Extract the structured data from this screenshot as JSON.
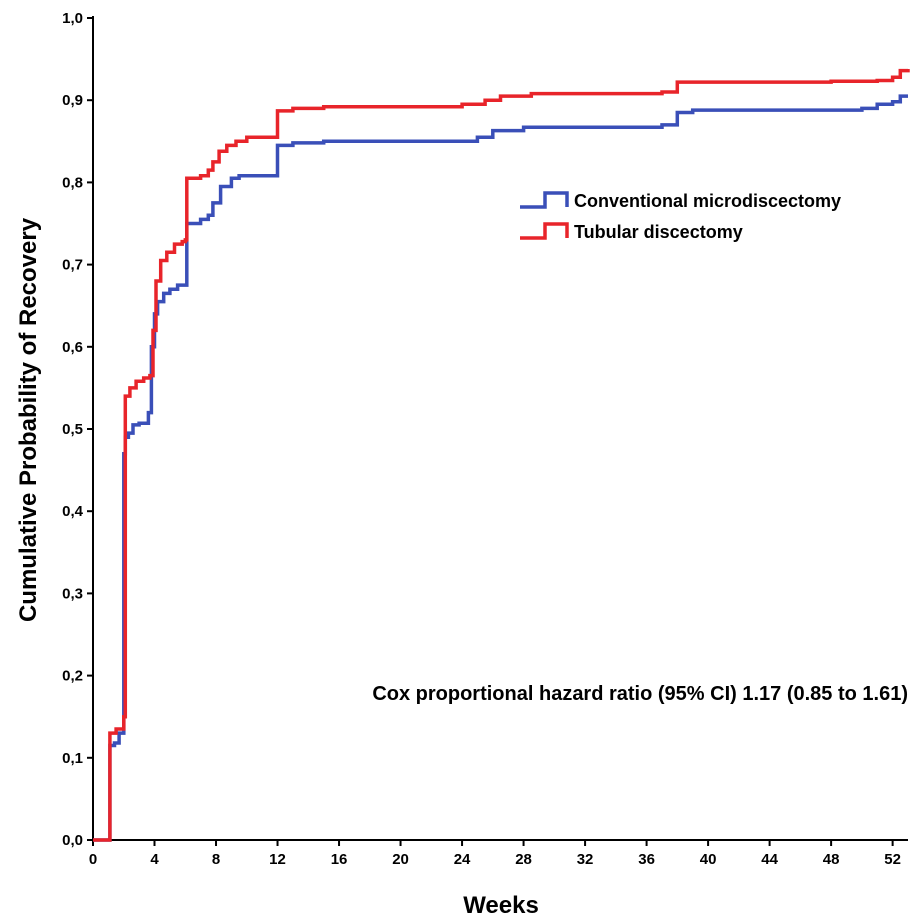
{
  "chart_data": {
    "type": "line",
    "step": true,
    "xlabel": "Weeks",
    "ylabel": "Cumulative Probability of Recovery",
    "xlim": [
      0,
      53
    ],
    "ylim": [
      0,
      1
    ],
    "x_ticks": [
      0,
      4,
      8,
      12,
      16,
      20,
      24,
      28,
      32,
      36,
      40,
      44,
      48,
      52
    ],
    "x_tick_labels": [
      "0",
      "4",
      "8",
      "12",
      "16",
      "20",
      "24",
      "28",
      "32",
      "36",
      "40",
      "44",
      "48",
      "52"
    ],
    "y_ticks": [
      0,
      0.1,
      0.2,
      0.3,
      0.4,
      0.5,
      0.6,
      0.7,
      0.8,
      0.9,
      1.0
    ],
    "y_tick_labels": [
      "0,0",
      "0,1",
      "0,2",
      "0,3",
      "0,4",
      "0,5",
      "0,6",
      "0,7",
      "0,8",
      "0,9",
      "1,0"
    ],
    "grid": false,
    "legend_position": "top-right",
    "annotation": "Cox proportional hazard ratio (95% CI) 1.17 (0.85 to 1.61)",
    "series": [
      {
        "name": "Conventional microdiscectomy",
        "color": "#3a4fb8",
        "x": [
          0,
          1,
          1.1,
          1.4,
          1.7,
          2.0,
          2.1,
          2.3,
          2.6,
          3.0,
          3.6,
          3.8,
          4.0,
          4.2,
          4.6,
          5.0,
          5.5,
          6.0,
          6.1,
          7.0,
          7.5,
          7.8,
          8.3,
          9.0,
          9.5,
          12.0,
          13.0,
          15.0,
          24.0,
          25.0,
          26.0,
          28.0,
          37.0,
          38.0,
          39.0,
          48.0,
          50.0,
          51.0,
          52.0,
          52.5,
          53.0
        ],
        "y": [
          0,
          0,
          0.115,
          0.118,
          0.13,
          0.47,
          0.49,
          0.495,
          0.505,
          0.507,
          0.52,
          0.6,
          0.64,
          0.655,
          0.665,
          0.67,
          0.675,
          0.675,
          0.75,
          0.755,
          0.76,
          0.775,
          0.795,
          0.805,
          0.808,
          0.845,
          0.848,
          0.85,
          0.85,
          0.855,
          0.863,
          0.867,
          0.87,
          0.885,
          0.888,
          0.888,
          0.89,
          0.895,
          0.898,
          0.905,
          0.905
        ]
      },
      {
        "name": "Tubular discectomy",
        "color": "#e8242a",
        "x": [
          0,
          1,
          1.1,
          1.5,
          2.0,
          2.1,
          2.4,
          2.8,
          3.3,
          3.7,
          3.9,
          4.1,
          4.4,
          4.8,
          5.3,
          5.8,
          6.0,
          6.1,
          7.0,
          7.5,
          7.8,
          8.2,
          8.7,
          9.3,
          10.0,
          12.0,
          13.0,
          15.0,
          24.0,
          25.5,
          26.5,
          28.5,
          37.0,
          38.0,
          39.0,
          48.0,
          50.0,
          51.0,
          52.0,
          52.5,
          53.0
        ],
        "y": [
          0,
          0,
          0.13,
          0.135,
          0.15,
          0.54,
          0.55,
          0.558,
          0.562,
          0.565,
          0.62,
          0.68,
          0.705,
          0.715,
          0.725,
          0.728,
          0.73,
          0.805,
          0.808,
          0.815,
          0.825,
          0.838,
          0.845,
          0.85,
          0.855,
          0.887,
          0.89,
          0.892,
          0.895,
          0.9,
          0.905,
          0.908,
          0.91,
          0.922,
          0.922,
          0.923,
          0.923,
          0.924,
          0.928,
          0.936,
          0.938
        ]
      }
    ]
  }
}
